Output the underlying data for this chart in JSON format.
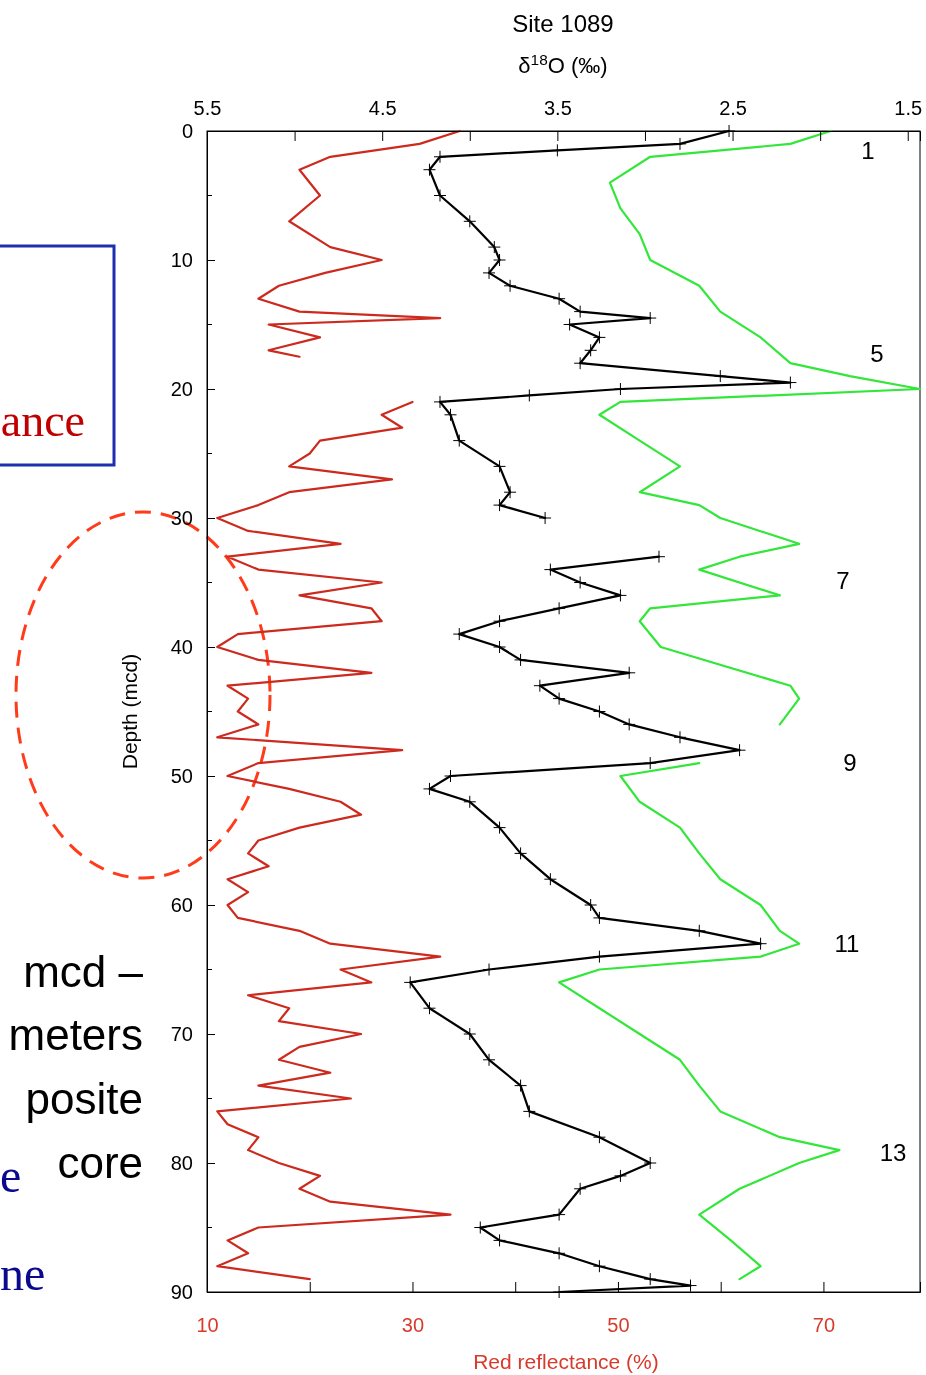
{
  "chart_data": {
    "type": "line",
    "title": "Site 1089",
    "x2label": "δ$^{18}$O (‰)",
    "xlabel": "Red reflectance (%)",
    "ylabel": "Depth (mcd)",
    "xlim": [
      10,
      79.4
    ],
    "xticks": [
      10,
      {
        "value": 20,
        "label": null
      },
      30,
      {
        "value": 40,
        "label": null
      },
      50,
      {
        "value": 60,
        "label": null
      },
      70
    ],
    "x2lim": [
      5.5,
      1.43
    ],
    "x2ticks": [
      5.5,
      {
        "value": 5,
        "label": null
      },
      4.5,
      {
        "value": 4,
        "label": null
      },
      3.5,
      {
        "value": 3,
        "label": null
      },
      2.5,
      {
        "value": 2,
        "label": null
      },
      1.5
    ],
    "ylim": [
      90,
      0
    ],
    "yticks": [
      0,
      10,
      20,
      30,
      40,
      50,
      60,
      70,
      80,
      90
    ],
    "series": [
      {
        "color": "#cc2a1e",
        "x": [
          34.6,
          30.7,
          22,
          19,
          21,
          18,
          22,
          27,
          21.5,
          17,
          15,
          19,
          32.7,
          16,
          21,
          16,
          19,
          null,
          30,
          27,
          29,
          21,
          20,
          18,
          28,
          18,
          15,
          11,
          14,
          23,
          12,
          15,
          27,
          19,
          26,
          27,
          13,
          11,
          15,
          26,
          12,
          14,
          13,
          15,
          11,
          29,
          15,
          12,
          18,
          23,
          25,
          19,
          15,
          14,
          16,
          12,
          14,
          12,
          13,
          19,
          22,
          32.7,
          23,
          26,
          14,
          18,
          17,
          25,
          19,
          17,
          22,
          15,
          24,
          11,
          12,
          15,
          14,
          17,
          21,
          19,
          22,
          33.7,
          15,
          12,
          14,
          11,
          20
        ],
        "values": [
          0,
          1,
          2,
          3,
          5,
          7,
          9,
          10,
          11,
          12,
          13,
          14,
          14.5,
          15,
          16,
          17,
          17.5,
          null,
          21,
          22,
          23,
          24,
          25,
          26,
          27,
          28,
          29,
          30,
          31,
          32,
          33,
          34,
          35,
          36,
          37,
          38,
          39,
          40,
          41,
          42,
          43,
          44,
          45,
          46,
          47,
          48,
          49,
          50,
          51,
          52,
          53,
          54,
          55,
          56,
          57,
          58,
          59,
          60,
          61,
          62,
          63,
          64,
          65,
          66,
          67,
          68,
          69,
          70,
          71,
          72,
          73,
          74,
          75,
          76,
          77,
          78,
          79,
          80,
          81,
          82,
          83,
          84,
          85,
          86,
          87,
          88,
          89
        ]
      },
      {
        "color": "#000000",
        "axis": "x2",
        "marker": "cross",
        "x": [
          2.52,
          2.8,
          3.5,
          4.17,
          4.23,
          4.17,
          4.0,
          3.86,
          3.83,
          3.89,
          3.77,
          3.49,
          3.37,
          2.97,
          3.43,
          3.26,
          3.31,
          3.37,
          2.57,
          2.17,
          3.14,
          3.66,
          4.17,
          4.11,
          4.06,
          3.83,
          3.77,
          3.83,
          3.57,
          null,
          2.92,
          3.54,
          3.37,
          3.14,
          3.49,
          3.83,
          4.06,
          3.83,
          3.71,
          3.09,
          3.6,
          3.49,
          3.26,
          3.09,
          2.8,
          2.46,
          2.97,
          4.11,
          4.23,
          4.0,
          3.83,
          3.71,
          3.54,
          3.31,
          3.26,
          2.69,
          2.34,
          3.26,
          3.89,
          4.34,
          4.23,
          4.0,
          3.89,
          3.71,
          3.66,
          3.26,
          2.97,
          3.14,
          3.37,
          3.49,
          3.94,
          3.83,
          3.49,
          3.26,
          2.97,
          2.74,
          3.49
        ],
        "values": [
          0,
          1,
          1.5,
          2,
          3,
          5,
          7,
          9,
          10,
          11,
          12,
          13,
          14,
          14.5,
          15,
          16,
          17,
          18,
          19,
          19.5,
          20,
          20.5,
          21,
          22,
          24,
          26,
          28,
          29,
          30,
          null,
          33,
          34,
          35,
          36,
          37,
          38,
          39,
          40,
          41,
          42,
          43,
          44,
          45,
          46,
          47,
          48,
          49,
          50,
          51,
          52,
          54,
          56,
          58,
          60,
          61,
          62,
          63,
          64,
          65,
          66,
          68,
          70,
          72,
          74,
          76,
          78,
          80,
          81,
          82,
          84,
          85,
          86,
          87,
          88,
          89,
          89.5,
          90
        ]
      },
      {
        "color": "#33e63a",
        "axis": "x2",
        "x": [
          1.94,
          2.17,
          2.97,
          3.2,
          3.14,
          3.03,
          2.97,
          2.69,
          2.57,
          2.34,
          2.17,
          1.83,
          1.43,
          3.14,
          3.26,
          3.03,
          2.8,
          3.03,
          2.69,
          2.57,
          2.12,
          2.46,
          2.69,
          2.23,
          2.97,
          3.03,
          2.91,
          2.17,
          2.12,
          2.23,
          null,
          2.69,
          3.14,
          3.03,
          2.8,
          2.69,
          2.57,
          2.34,
          2.23,
          2.12,
          2.34,
          3.26,
          3.49,
          3.26,
          3.03,
          2.8,
          2.69,
          2.57,
          2.23,
          1.89,
          2.12,
          2.46,
          2.69,
          2.51,
          2.34,
          2.46
        ],
        "values": [
          0,
          1,
          2,
          4,
          6,
          8,
          10,
          12,
          14,
          16,
          18,
          19,
          20,
          21,
          22,
          24,
          26,
          28,
          29,
          30,
          32,
          33,
          34,
          36,
          37,
          38,
          40,
          43,
          44,
          46,
          null,
          49,
          50,
          52,
          54,
          56,
          58,
          60,
          62,
          63,
          64,
          65,
          66,
          68,
          70,
          72,
          74,
          76,
          78,
          79,
          80,
          82,
          84,
          86,
          88,
          89
        ]
      }
    ],
    "annotations": [
      "1",
      "5",
      "7",
      "9",
      "11",
      "13",
      "ance",
      "mcd –",
      "meters",
      "posite",
      "e",
      "core",
      "ne"
    ]
  }
}
